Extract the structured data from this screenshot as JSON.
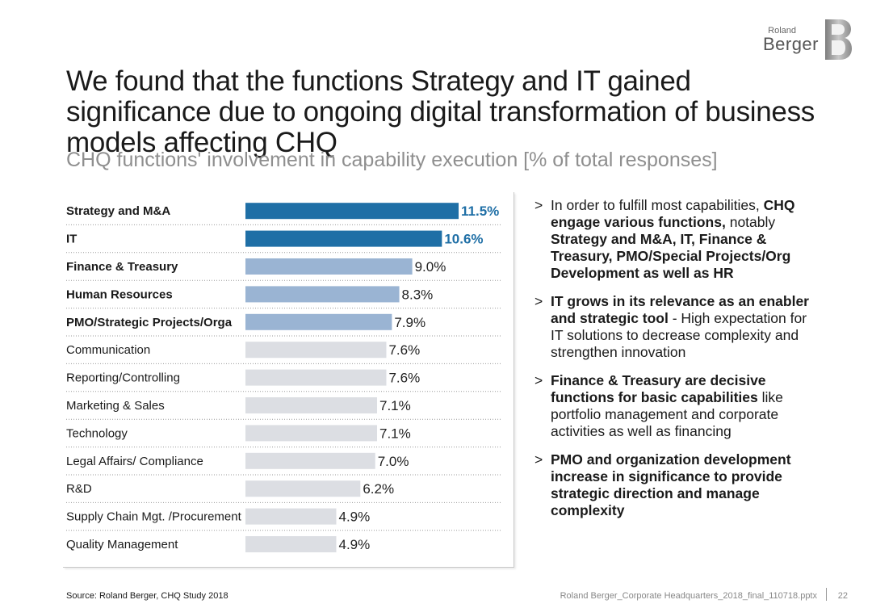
{
  "logo": {
    "small": "Roland",
    "large": "Berger"
  },
  "title": "We found that the functions Strategy and IT gained significance due to ongoing digital transformation of business models affecting CHQ",
  "subtitle": "CHQ functions' involvement in capability execution [% of total responses]",
  "colors": {
    "highlight": "#1f6fa6",
    "mid": "#9ab4d3",
    "base": "#dcdee3"
  },
  "chart_data": {
    "type": "bar",
    "orientation": "horizontal",
    "categories": [
      "Strategy and M&A",
      "IT",
      "Finance & Treasury",
      "Human Resources",
      "PMO/Strategic Projects/Orga",
      "Communication",
      "Reporting/Controlling",
      "Marketing & Sales",
      "Technology",
      "Legal Affairs/ Compliance",
      "R&D",
      "Supply Chain Mgt. /Procurement",
      "Quality Management"
    ],
    "values": [
      11.5,
      10.6,
      9.0,
      8.3,
      7.9,
      7.6,
      7.6,
      7.1,
      7.1,
      7.0,
      6.2,
      4.9,
      4.9
    ],
    "value_labels": [
      "11.5%",
      "10.6%",
      "9.0%",
      "8.3%",
      "7.9%",
      "7.6%",
      "7.6%",
      "7.1%",
      "7.1%",
      "7.0%",
      "6.2%",
      "4.9%",
      "4.9%"
    ],
    "tiers": [
      "highlight",
      "highlight",
      "mid",
      "mid",
      "mid",
      "base",
      "base",
      "base",
      "base",
      "base",
      "base",
      "base",
      "base"
    ],
    "bold_labels": [
      true,
      true,
      true,
      true,
      true,
      false,
      false,
      false,
      false,
      false,
      false,
      false,
      false
    ],
    "xlim": [
      0,
      11.5
    ],
    "grid": false
  },
  "bullets": [
    {
      "parts": [
        {
          "text": "In order to fulfill most capabilities, ",
          "bold": false
        },
        {
          "text": "CHQ engage various functions,",
          "bold": true
        },
        {
          "text": " notably ",
          "bold": false
        },
        {
          "text": "Strategy and M&A, IT, Finance & Treasury, PMO/Special Projects/Org Development as well as HR",
          "bold": true
        }
      ]
    },
    {
      "parts": [
        {
          "text": "IT grows in its relevance as an enabler and strategic tool",
          "bold": true
        },
        {
          "text": " - High expectation for IT solutions to decrease complexity and strengthen innovation",
          "bold": false
        }
      ]
    },
    {
      "parts": [
        {
          "text": "Finance & Treasury are decisive functions for basic capabilities",
          "bold": true
        },
        {
          "text": " like portfolio management and corporate activities as well as financing",
          "bold": false
        }
      ]
    },
    {
      "parts": [
        {
          "text": "PMO and organization development increase in significance to provide strategic direction and manage complexity",
          "bold": true
        }
      ]
    }
  ],
  "bullet_marker": ">",
  "footer": {
    "source": "Source: Roland Berger, CHQ Study 2018",
    "file": "Roland Berger_Corporate Headquarters_2018_final_110718.pptx",
    "page": "22"
  }
}
